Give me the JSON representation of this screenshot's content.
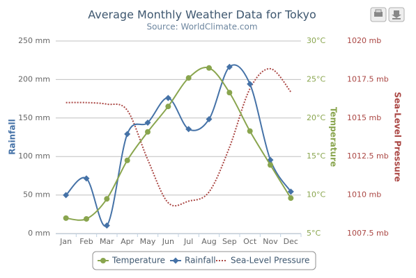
{
  "chart_data": {
    "type": "multi-axis-line",
    "title": "Average Monthly Weather Data for Tokyo",
    "subtitle": "Source: WorldClimate.com",
    "categories": [
      "Jan",
      "Feb",
      "Mar",
      "Apr",
      "May",
      "Jun",
      "Jul",
      "Aug",
      "Sep",
      "Oct",
      "Nov",
      "Dec"
    ],
    "y_label": "Rainfall",
    "y2_label": "Temperature",
    "y3_label": "Sea-Level Pressure",
    "ylim": [
      0,
      250
    ],
    "yticks": [
      {
        "value": 0,
        "label": "0 mm"
      },
      {
        "value": 50,
        "label": "50 mm"
      },
      {
        "value": 100,
        "label": "100 mm"
      },
      {
        "value": 150,
        "label": "150 mm"
      },
      {
        "value": 200,
        "label": "200 mm"
      },
      {
        "value": 250,
        "label": "250 mm"
      }
    ],
    "y2lim": [
      5,
      30
    ],
    "y2ticks": [
      {
        "value": 5,
        "label": "5°C"
      },
      {
        "value": 10,
        "label": "10°C"
      },
      {
        "value": 15,
        "label": "15°C"
      },
      {
        "value": 20,
        "label": "20°C"
      },
      {
        "value": 25,
        "label": "25°C"
      },
      {
        "value": 30,
        "label": "30°C"
      }
    ],
    "y3lim": [
      1007.5,
      1020
    ],
    "y3ticks": [
      {
        "value": 1007.5,
        "label": "1007.5 mb"
      },
      {
        "value": 1010,
        "label": "1010 mb"
      },
      {
        "value": 1012.5,
        "label": "1012.5 mb"
      },
      {
        "value": 1015,
        "label": "1015 mb"
      },
      {
        "value": 1017.5,
        "label": "1017.5 mb"
      },
      {
        "value": 1020,
        "label": "1020 mb"
      }
    ],
    "grid": true,
    "legend": "bottom",
    "series": [
      {
        "name": "Temperature",
        "color": "#89A54E",
        "axis": "y2",
        "marker": "circle",
        "values": [
          7.0,
          6.9,
          9.5,
          14.5,
          18.2,
          21.5,
          25.2,
          26.5,
          23.3,
          18.3,
          13.9,
          9.6
        ]
      },
      {
        "name": "Rainfall",
        "color": "#4572A7",
        "axis": "y",
        "marker": "diamond",
        "values": [
          49.9,
          71.5,
          10.4,
          129.2,
          144.0,
          176.0,
          135.6,
          148.5,
          216.4,
          194.1,
          95.6,
          54.4
        ]
      },
      {
        "name": "Sea-Level Pressure",
        "color": "#AA4643",
        "axis": "y3",
        "marker": "none",
        "values": [
          1016,
          1016,
          1015.9,
          1015.5,
          1012.3,
          1009.5,
          1009.6,
          1010.2,
          1013.1,
          1016.9,
          1018.2,
          1016.7
        ]
      }
    ]
  }
}
